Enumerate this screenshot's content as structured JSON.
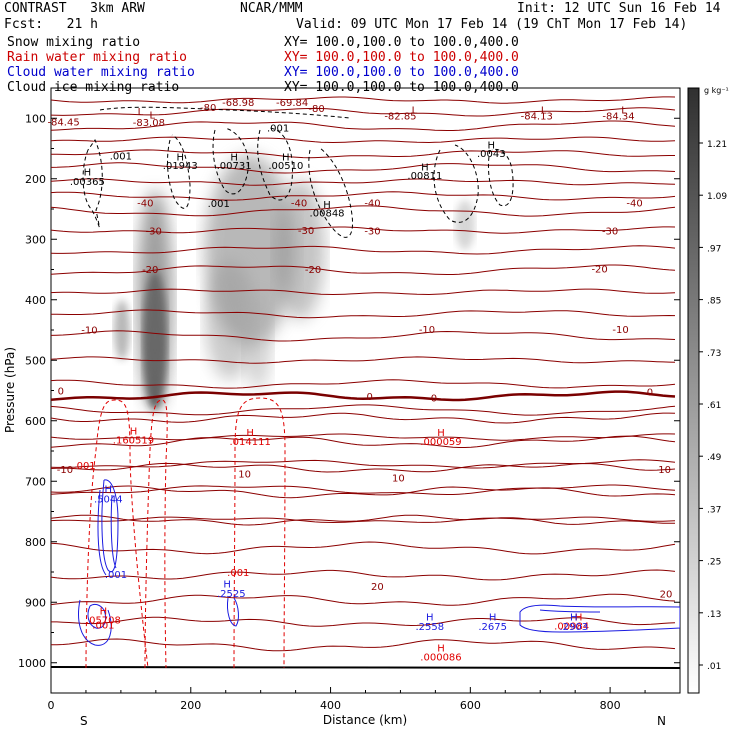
{
  "header": {
    "model": "CONTRAST   3km ARW",
    "org": "NCAR/MMM",
    "init": "Init: 12 UTC Sun 16 Feb 14",
    "fcst": "Fcst:   21 h",
    "valid": "Valid: 09 UTC Mon 17 Feb 14 (19 ChT Mon 17 Feb 14)",
    "fields": [
      {
        "name": "Snow mixing ratio",
        "xy": "XY= 100.0,100.0 to 100.0,400.0",
        "color": "#000000"
      },
      {
        "name": "Rain water mixing ratio",
        "xy": "XY= 100.0,100.0 to 100.0,400.0",
        "color": "#cc0000"
      },
      {
        "name": "Cloud water mixing ratio",
        "xy": "XY= 100.0,100.0 to 100.0,400.0",
        "color": "#0000cc"
      },
      {
        "name": "Cloud ice mixing ratio",
        "xy": "XY= 100.0,100.0 to 100.0,400.0",
        "color": "#000000"
      }
    ]
  },
  "chart_data": {
    "type": "contour cross-section",
    "xlabel": "Distance (km)",
    "ylabel": "Pressure (hPa)",
    "xlim": [
      0,
      900
    ],
    "ylim": [
      1050,
      50
    ],
    "x_ticks": [
      0,
      200,
      400,
      600,
      800
    ],
    "y_ticks": [
      100,
      200,
      300,
      400,
      500,
      600,
      700,
      800,
      900,
      1000
    ],
    "x_end_labels": {
      "left": "S",
      "right": "N"
    },
    "colorbar": {
      "unit": "g kg⁻¹",
      "levels": [
        ".01",
        ".13",
        ".25",
        ".37",
        ".49",
        ".61",
        ".73",
        ".85",
        ".97",
        "1.09",
        "1.21"
      ]
    },
    "temperature_labels": [
      {
        "text": "-80",
        "x": 225,
        "p": 88
      },
      {
        "text": "-68.98",
        "x": 268,
        "p": 80
      },
      {
        "text": "-69.84",
        "x": 345,
        "p": 80
      },
      {
        "text": "-80",
        "x": 380,
        "p": 90
      },
      {
        "text": "L",
        "x": 128,
        "p": 95
      },
      {
        "text": "-84.45",
        "x": 18,
        "p": 112
      },
      {
        "text": "L",
        "x": 145,
        "p": 100
      },
      {
        "text": "-83.08",
        "x": 140,
        "p": 113
      },
      {
        "text": "L",
        "x": 520,
        "p": 92
      },
      {
        "text": "-82.85",
        "x": 500,
        "p": 102
      },
      {
        "text": "L",
        "x": 705,
        "p": 92
      },
      {
        "text": "-84.13",
        "x": 695,
        "p": 102
      },
      {
        "text": "L",
        "x": 820,
        "p": 92
      },
      {
        "text": "-84.34",
        "x": 812,
        "p": 102
      },
      {
        "text": "-40",
        "x": 135,
        "p": 246
      },
      {
        "text": "-40",
        "x": 355,
        "p": 246
      },
      {
        "text": "-40",
        "x": 460,
        "p": 246
      },
      {
        "text": "-40",
        "x": 835,
        "p": 246
      },
      {
        "text": "-30",
        "x": 147,
        "p": 292
      },
      {
        "text": "-30",
        "x": 365,
        "p": 291
      },
      {
        "text": "-30",
        "x": 460,
        "p": 292
      },
      {
        "text": "-30",
        "x": 800,
        "p": 292
      },
      {
        "text": "-20",
        "x": 142,
        "p": 356
      },
      {
        "text": "-20",
        "x": 375,
        "p": 356
      },
      {
        "text": "-20",
        "x": 785,
        "p": 355
      },
      {
        "text": "-10",
        "x": 55,
        "p": 456
      },
      {
        "text": "-10",
        "x": 538,
        "p": 455
      },
      {
        "text": "-10",
        "x": 815,
        "p": 455
      },
      {
        "text": "0",
        "x": 14,
        "p": 557
      },
      {
        "text": "0",
        "x": 456,
        "p": 566
      },
      {
        "text": "0",
        "x": 548,
        "p": 568
      },
      {
        "text": "0",
        "x": 857,
        "p": 558
      },
      {
        "text": "10",
        "x": 277,
        "p": 694
      },
      {
        "text": "10",
        "x": 497,
        "p": 700
      },
      {
        "text": "10",
        "x": 878,
        "p": 686
      },
      {
        "text": "20",
        "x": 467,
        "p": 880
      },
      {
        "text": "20",
        "x": 880,
        "p": 892
      },
      {
        "text": "-10",
        "x": 20,
        "p": 686
      }
    ],
    "ice_labels": [
      {
        "text": ".001",
        "x": 100,
        "p": 168
      },
      {
        "text": "H",
        "x": 52,
        "p": 195
      },
      {
        "text": ".00365",
        "x": 52,
        "p": 210
      },
      {
        "text": "H",
        "x": 185,
        "p": 170
      },
      {
        "text": ".01943",
        "x": 185,
        "p": 184
      },
      {
        "text": "H",
        "x": 262,
        "p": 170
      },
      {
        "text": ".00731",
        "x": 262,
        "p": 184
      },
      {
        "text": "H",
        "x": 336,
        "p": 170
      },
      {
        "text": ".00510",
        "x": 336,
        "p": 184
      },
      {
        "text": ".001",
        "x": 240,
        "p": 247
      },
      {
        "text": ".001",
        "x": 325,
        "p": 122
      },
      {
        "text": "H",
        "x": 395,
        "p": 248
      },
      {
        "text": ".00848",
        "x": 395,
        "p": 262
      },
      {
        "text": "H",
        "x": 535,
        "p": 186
      },
      {
        "text": ".00811",
        "x": 535,
        "p": 200
      },
      {
        "text": "H",
        "x": 630,
        "p": 150
      },
      {
        "text": ".0043",
        "x": 630,
        "p": 164
      }
    ],
    "rain_labels": [
      {
        "text": "H",
        "x": 118,
        "p": 623
      },
      {
        "text": ".160519",
        "x": 118,
        "p": 638
      },
      {
        "text": "H",
        "x": 285,
        "p": 625
      },
      {
        "text": ".014111",
        "x": 285,
        "p": 640
      },
      {
        "text": "H",
        "x": 558,
        "p": 625
      },
      {
        "text": ".000059",
        "x": 558,
        "p": 640
      },
      {
        "text": ".001",
        "x": 48,
        "p": 680
      },
      {
        "text": ".001",
        "x": 268,
        "p": 857
      },
      {
        "text": ".001",
        "x": 75,
        "p": 943
      },
      {
        "text": "H",
        "x": 75,
        "p": 920
      },
      {
        "text": ".05708",
        "x": 75,
        "p": 935
      },
      {
        "text": "H",
        "x": 558,
        "p": 981
      },
      {
        "text": ".000086",
        "x": 558,
        "p": 996
      },
      {
        "text": ".00984",
        "x": 745,
        "p": 945
      },
      {
        "text": "H",
        "x": 755,
        "p": 930
      }
    ],
    "cloud_water_labels": [
      {
        "text": "H",
        "x": 82,
        "p": 719
      },
      {
        "text": ".5044",
        "x": 82,
        "p": 735
      },
      {
        "text": ".001",
        "x": 93,
        "p": 860
      },
      {
        "text": "H",
        "x": 252,
        "p": 876
      },
      {
        "text": ".2525",
        "x": 258,
        "p": 891
      },
      {
        "text": "H",
        "x": 542,
        "p": 930
      },
      {
        "text": ".2558",
        "x": 542,
        "p": 946
      },
      {
        "text": "H",
        "x": 632,
        "p": 930
      },
      {
        "text": ".2675",
        "x": 632,
        "p": 946
      },
      {
        "text": "H",
        "x": 748,
        "p": 930
      },
      {
        "text": ".2903",
        "x": 748,
        "p": 946
      }
    ]
  }
}
